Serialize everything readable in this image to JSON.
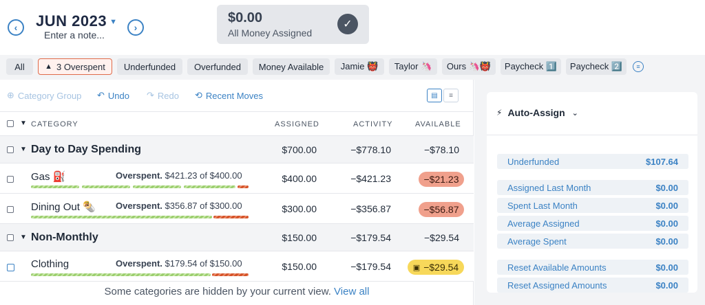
{
  "header": {
    "month": "JUN 2023",
    "note_placeholder": "Enter a note...",
    "assigned_amount": "$0.00",
    "assigned_label": "All Money Assigned"
  },
  "filters": [
    {
      "label": "All"
    },
    {
      "label": "3 Overspent"
    },
    {
      "label": "Underfunded"
    },
    {
      "label": "Overfunded"
    },
    {
      "label": "Money Available"
    },
    {
      "label": "Jamie 👹"
    },
    {
      "label": "Taylor 🦄"
    },
    {
      "label": "Ours 🦄👹"
    },
    {
      "label": "Paycheck 1️⃣"
    },
    {
      "label": "Paycheck 2️⃣"
    }
  ],
  "toolbar": {
    "category_group": "Category Group",
    "undo": "Undo",
    "redo": "Redo",
    "recent_moves": "Recent Moves"
  },
  "columns": {
    "category": "CATEGORY",
    "assigned": "ASSIGNED",
    "activity": "ACTIVITY",
    "available": "AVAILABLE"
  },
  "groups": [
    {
      "name": "Day to Day Spending",
      "assigned": "$700.00",
      "activity": "−$778.10",
      "available": "−$78.10",
      "categories": [
        {
          "name": "Gas ⛽",
          "status_bold": "Overspent.",
          "status_text": "$421.23 of $400.00",
          "assigned": "$400.00",
          "activity": "−$421.23",
          "available": "−$21.23",
          "spent": 421.23,
          "target": 400.0,
          "pill": "red"
        },
        {
          "name": "Dining Out 🌯",
          "status_bold": "Overspent.",
          "status_text": "$356.87 of $300.00",
          "assigned": "$300.00",
          "activity": "−$356.87",
          "available": "−$56.87",
          "spent": 356.87,
          "target": 300.0,
          "pill": "red"
        }
      ]
    },
    {
      "name": "Non-Monthly",
      "assigned": "$150.00",
      "activity": "−$179.54",
      "available": "−$29.54",
      "categories": [
        {
          "name": "Clothing",
          "status_bold": "Overspent.",
          "status_text": "$179.54 of $150.00",
          "assigned": "$150.00",
          "activity": "−$179.54",
          "available": "−$29.54",
          "spent": 179.54,
          "target": 150.0,
          "pill": "yellow"
        }
      ]
    }
  ],
  "hidden_notice": {
    "text": "Some categories are hidden by your current view.",
    "link": "View all"
  },
  "auto_assign": {
    "title": "Auto-Assign",
    "rows": [
      {
        "label": "Underfunded",
        "value": "$107.64"
      },
      {
        "label": "Assigned Last Month",
        "value": "$0.00"
      },
      {
        "label": "Spent Last Month",
        "value": "$0.00"
      },
      {
        "label": "Average Assigned",
        "value": "$0.00"
      },
      {
        "label": "Average Spent",
        "value": "$0.00"
      },
      {
        "label": "Reset Available Amounts",
        "value": "$0.00"
      },
      {
        "label": "Reset Assigned Amounts",
        "value": "$0.00"
      }
    ]
  },
  "colors": {
    "accent": "#3b82c4",
    "overspent_red": "#f0a08c",
    "overspent_yellow": "#f7d85a",
    "progress_green": "#9ccf6f",
    "progress_red": "#d6542a"
  }
}
